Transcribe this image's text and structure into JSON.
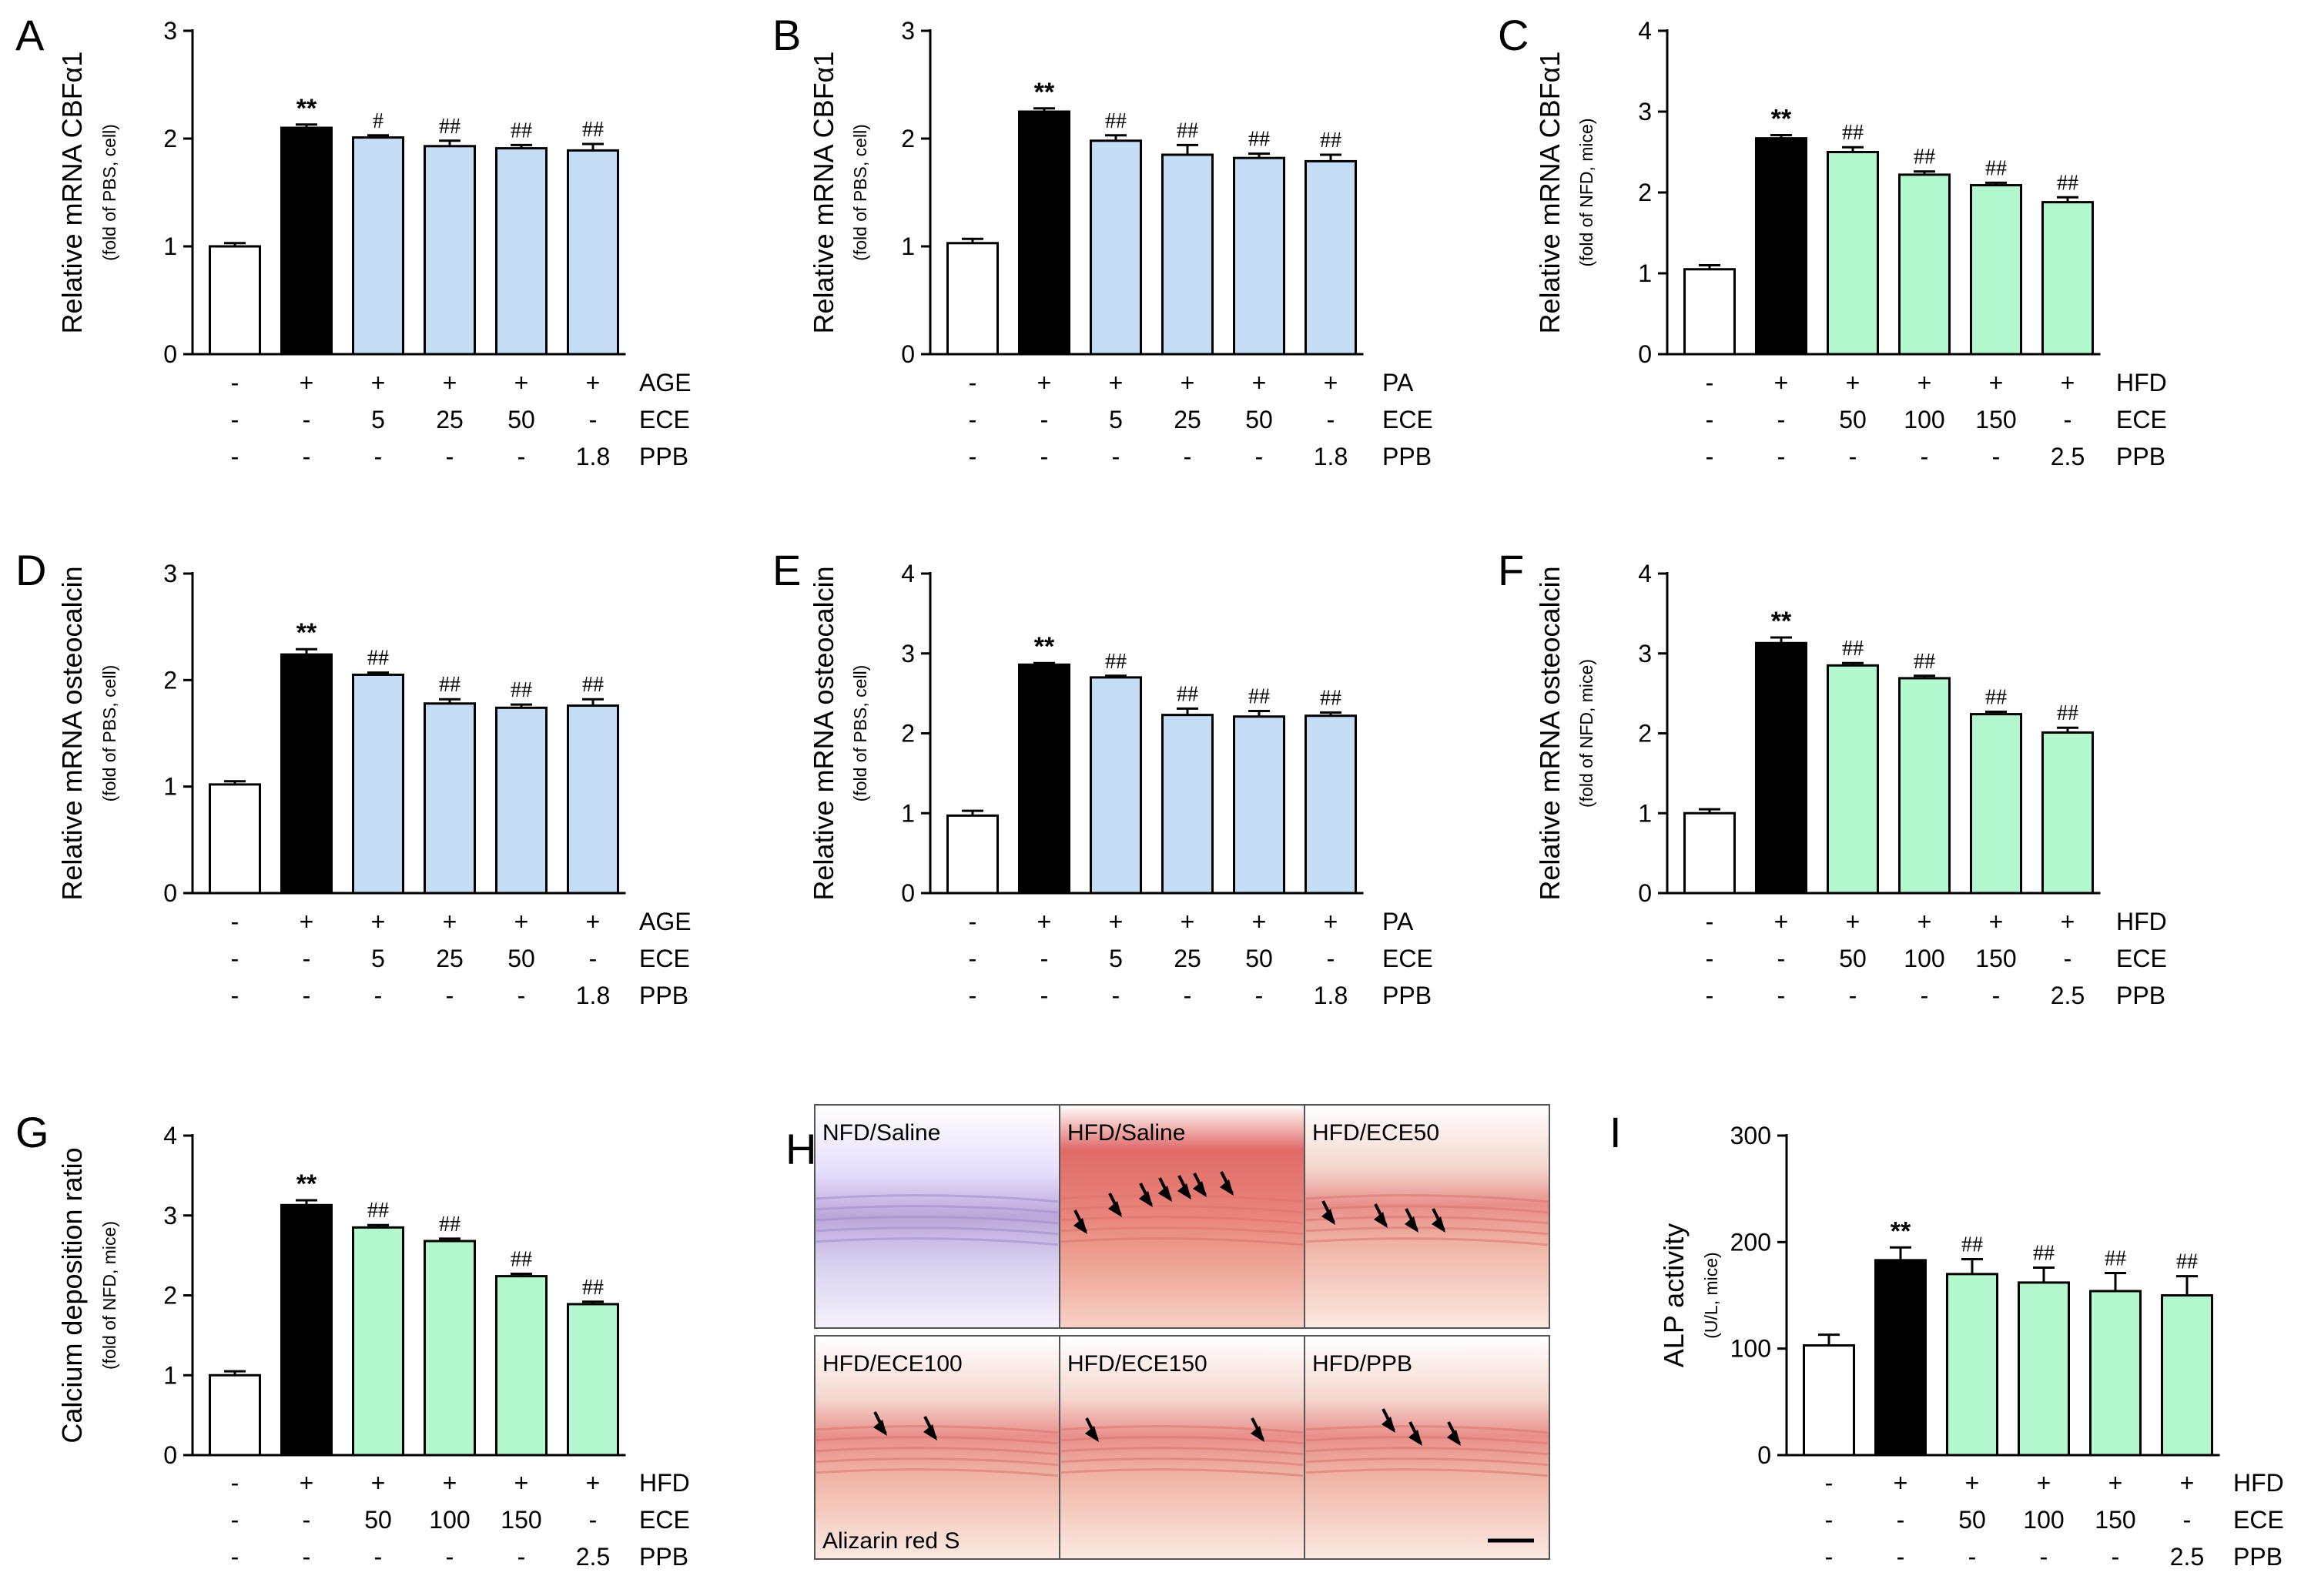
{
  "colors": {
    "white_bar": "#ffffff",
    "black_bar": "#000000",
    "blue_bar": "#c5ddf4",
    "green_bar": "#b3f7cf",
    "axis": "#000000"
  },
  "micro_panel": {
    "label": "H",
    "tiles": [
      {
        "title": "NFD/Saline"
      },
      {
        "title": "HFD/Saline"
      },
      {
        "title": "HFD/ECE50"
      },
      {
        "title": "HFD/ECE100",
        "caption": "Alizarin red S"
      },
      {
        "title": "HFD/ECE150"
      },
      {
        "title": "HFD/PPB"
      }
    ]
  },
  "chart_data": [
    {
      "panel": "A",
      "type": "bar",
      "ylabel": "Relative mRNA CBFα1",
      "ysub": "(fold of PBS, cell)",
      "ylim": [
        0,
        3
      ],
      "yticks": [
        0,
        1,
        2,
        3
      ],
      "values": [
        1.0,
        2.1,
        2.01,
        1.93,
        1.91,
        1.89
      ],
      "errors": [
        0.03,
        0.03,
        0.02,
        0.05,
        0.03,
        0.06
      ],
      "colors": [
        "white",
        "black",
        "blue",
        "blue",
        "blue",
        "blue"
      ],
      "annotations": [
        "",
        "**",
        "#",
        "##",
        "##",
        "##"
      ],
      "conditions": [
        [
          "-",
          "+",
          "+",
          "+",
          "+",
          "+",
          "AGE"
        ],
        [
          "-",
          "-",
          "5",
          "25",
          "50",
          "-",
          "ECE"
        ],
        [
          "-",
          "-",
          "-",
          "-",
          "-",
          "1.8",
          "PPB"
        ]
      ]
    },
    {
      "panel": "B",
      "type": "bar",
      "ylabel": "Relative mRNA CBFα1",
      "ysub": "(fold of PBS, cell)",
      "ylim": [
        0,
        3
      ],
      "yticks": [
        0,
        1,
        2,
        3
      ],
      "values": [
        1.03,
        2.25,
        1.98,
        1.85,
        1.82,
        1.79
      ],
      "errors": [
        0.04,
        0.03,
        0.05,
        0.09,
        0.04,
        0.06
      ],
      "colors": [
        "white",
        "black",
        "blue",
        "blue",
        "blue",
        "blue"
      ],
      "annotations": [
        "",
        "**",
        "##",
        "##",
        "##",
        "##"
      ],
      "conditions": [
        [
          "-",
          "+",
          "+",
          "+",
          "+",
          "+",
          "PA"
        ],
        [
          "-",
          "-",
          "5",
          "25",
          "50",
          "-",
          "ECE"
        ],
        [
          "-",
          "-",
          "-",
          "-",
          "-",
          "1.8",
          "PPB"
        ]
      ]
    },
    {
      "panel": "C",
      "type": "bar",
      "ylabel": "Relative mRNA CBFα1",
      "ysub": "(fold of NFD, mice)",
      "ylim": [
        0,
        4
      ],
      "yticks": [
        0,
        1,
        2,
        3,
        4
      ],
      "values": [
        1.05,
        2.67,
        2.5,
        2.22,
        2.09,
        1.88
      ],
      "errors": [
        0.05,
        0.04,
        0.06,
        0.04,
        0.03,
        0.06
      ],
      "colors": [
        "white",
        "black",
        "green",
        "green",
        "green",
        "green"
      ],
      "annotations": [
        "",
        "**",
        "##",
        "##",
        "##",
        "##"
      ],
      "conditions": [
        [
          "-",
          "+",
          "+",
          "+",
          "+",
          "+",
          "HFD"
        ],
        [
          "-",
          "-",
          "50",
          "100",
          "150",
          "-",
          "ECE"
        ],
        [
          "-",
          "-",
          "-",
          "-",
          "-",
          "2.5",
          "PPB"
        ]
      ]
    },
    {
      "panel": "D",
      "type": "bar",
      "ylabel": "Relative mRNA osteocalcin",
      "ysub": "(fold of PBS, cell)",
      "ylim": [
        0,
        3
      ],
      "yticks": [
        0,
        1,
        2,
        3
      ],
      "values": [
        1.02,
        2.24,
        2.05,
        1.78,
        1.74,
        1.76
      ],
      "errors": [
        0.03,
        0.05,
        0.02,
        0.04,
        0.03,
        0.06
      ],
      "colors": [
        "white",
        "black",
        "blue",
        "blue",
        "blue",
        "blue"
      ],
      "annotations": [
        "",
        "**",
        "##",
        "##",
        "##",
        "##"
      ],
      "conditions": [
        [
          "-",
          "+",
          "+",
          "+",
          "+",
          "+",
          "AGE"
        ],
        [
          "-",
          "-",
          "5",
          "25",
          "50",
          "-",
          "ECE"
        ],
        [
          "-",
          "-",
          "-",
          "-",
          "-",
          "1.8",
          "PPB"
        ]
      ]
    },
    {
      "panel": "E",
      "type": "bar",
      "ylabel": "Relative mRNA osteocalcin",
      "ysub": "(fold of PBS, cell)",
      "ylim": [
        0,
        4
      ],
      "yticks": [
        0,
        1,
        2,
        3,
        4
      ],
      "values": [
        0.97,
        2.86,
        2.7,
        2.23,
        2.21,
        2.22
      ],
      "errors": [
        0.06,
        0.02,
        0.02,
        0.08,
        0.07,
        0.04
      ],
      "colors": [
        "white",
        "black",
        "blue",
        "blue",
        "blue",
        "blue"
      ],
      "annotations": [
        "",
        "**",
        "##",
        "##",
        "##",
        "##"
      ],
      "conditions": [
        [
          "-",
          "+",
          "+",
          "+",
          "+",
          "+",
          "PA"
        ],
        [
          "-",
          "-",
          "5",
          "25",
          "50",
          "-",
          "ECE"
        ],
        [
          "-",
          "-",
          "-",
          "-",
          "-",
          "1.8",
          "PPB"
        ]
      ]
    },
    {
      "panel": "F",
      "type": "bar",
      "ylabel": "Relative mRNA osteocalcin",
      "ysub": "(fold of NFD, mice)",
      "ylim": [
        0,
        4
      ],
      "yticks": [
        0,
        1,
        2,
        3,
        4
      ],
      "values": [
        1.0,
        3.13,
        2.85,
        2.69,
        2.24,
        2.01
      ],
      "errors": [
        0.05,
        0.07,
        0.03,
        0.03,
        0.03,
        0.06
      ],
      "colors": [
        "white",
        "black",
        "green",
        "green",
        "green",
        "green"
      ],
      "annotations": [
        "",
        "**",
        "##",
        "##",
        "##",
        "##"
      ],
      "conditions": [
        [
          "-",
          "+",
          "+",
          "+",
          "+",
          "+",
          "HFD"
        ],
        [
          "-",
          "-",
          "50",
          "100",
          "150",
          "-",
          "ECE"
        ],
        [
          "-",
          "-",
          "-",
          "-",
          "-",
          "2.5",
          "PPB"
        ]
      ]
    },
    {
      "panel": "G",
      "type": "bar",
      "ylabel": "Calcium deposition ratio",
      "ysub": "(fold of NFD, mice)",
      "ylim": [
        0,
        4
      ],
      "yticks": [
        0,
        1,
        2,
        3,
        4
      ],
      "values": [
        1.0,
        3.13,
        2.85,
        2.68,
        2.24,
        1.89
      ],
      "errors": [
        0.05,
        0.06,
        0.03,
        0.03,
        0.03,
        0.03
      ],
      "colors": [
        "white",
        "black",
        "green",
        "green",
        "green",
        "green"
      ],
      "annotations": [
        "",
        "**",
        "##",
        "##",
        "##",
        "##"
      ],
      "conditions": [
        [
          "-",
          "+",
          "+",
          "+",
          "+",
          "+",
          "HFD"
        ],
        [
          "-",
          "-",
          "50",
          "100",
          "150",
          "-",
          "ECE"
        ],
        [
          "-",
          "-",
          "-",
          "-",
          "-",
          "2.5",
          "PPB"
        ]
      ]
    },
    {
      "panel": "I",
      "type": "bar",
      "ylabel": "ALP activity",
      "ysub": "(U/L, mice)",
      "ylim": [
        0,
        300
      ],
      "yticks": [
        0,
        100,
        200,
        300
      ],
      "values": [
        103,
        183,
        170,
        162,
        154,
        150
      ],
      "errors": [
        10,
        12,
        14,
        14,
        17,
        18
      ],
      "colors": [
        "white",
        "black",
        "green",
        "green",
        "green",
        "green"
      ],
      "annotations": [
        "",
        "**",
        "##",
        "##",
        "##",
        "##"
      ],
      "conditions": [
        [
          "-",
          "+",
          "+",
          "+",
          "+",
          "+",
          "HFD"
        ],
        [
          "-",
          "-",
          "50",
          "100",
          "150",
          "-",
          "ECE"
        ],
        [
          "-",
          "-",
          "-",
          "-",
          "-",
          "2.5",
          "PPB"
        ]
      ]
    }
  ]
}
